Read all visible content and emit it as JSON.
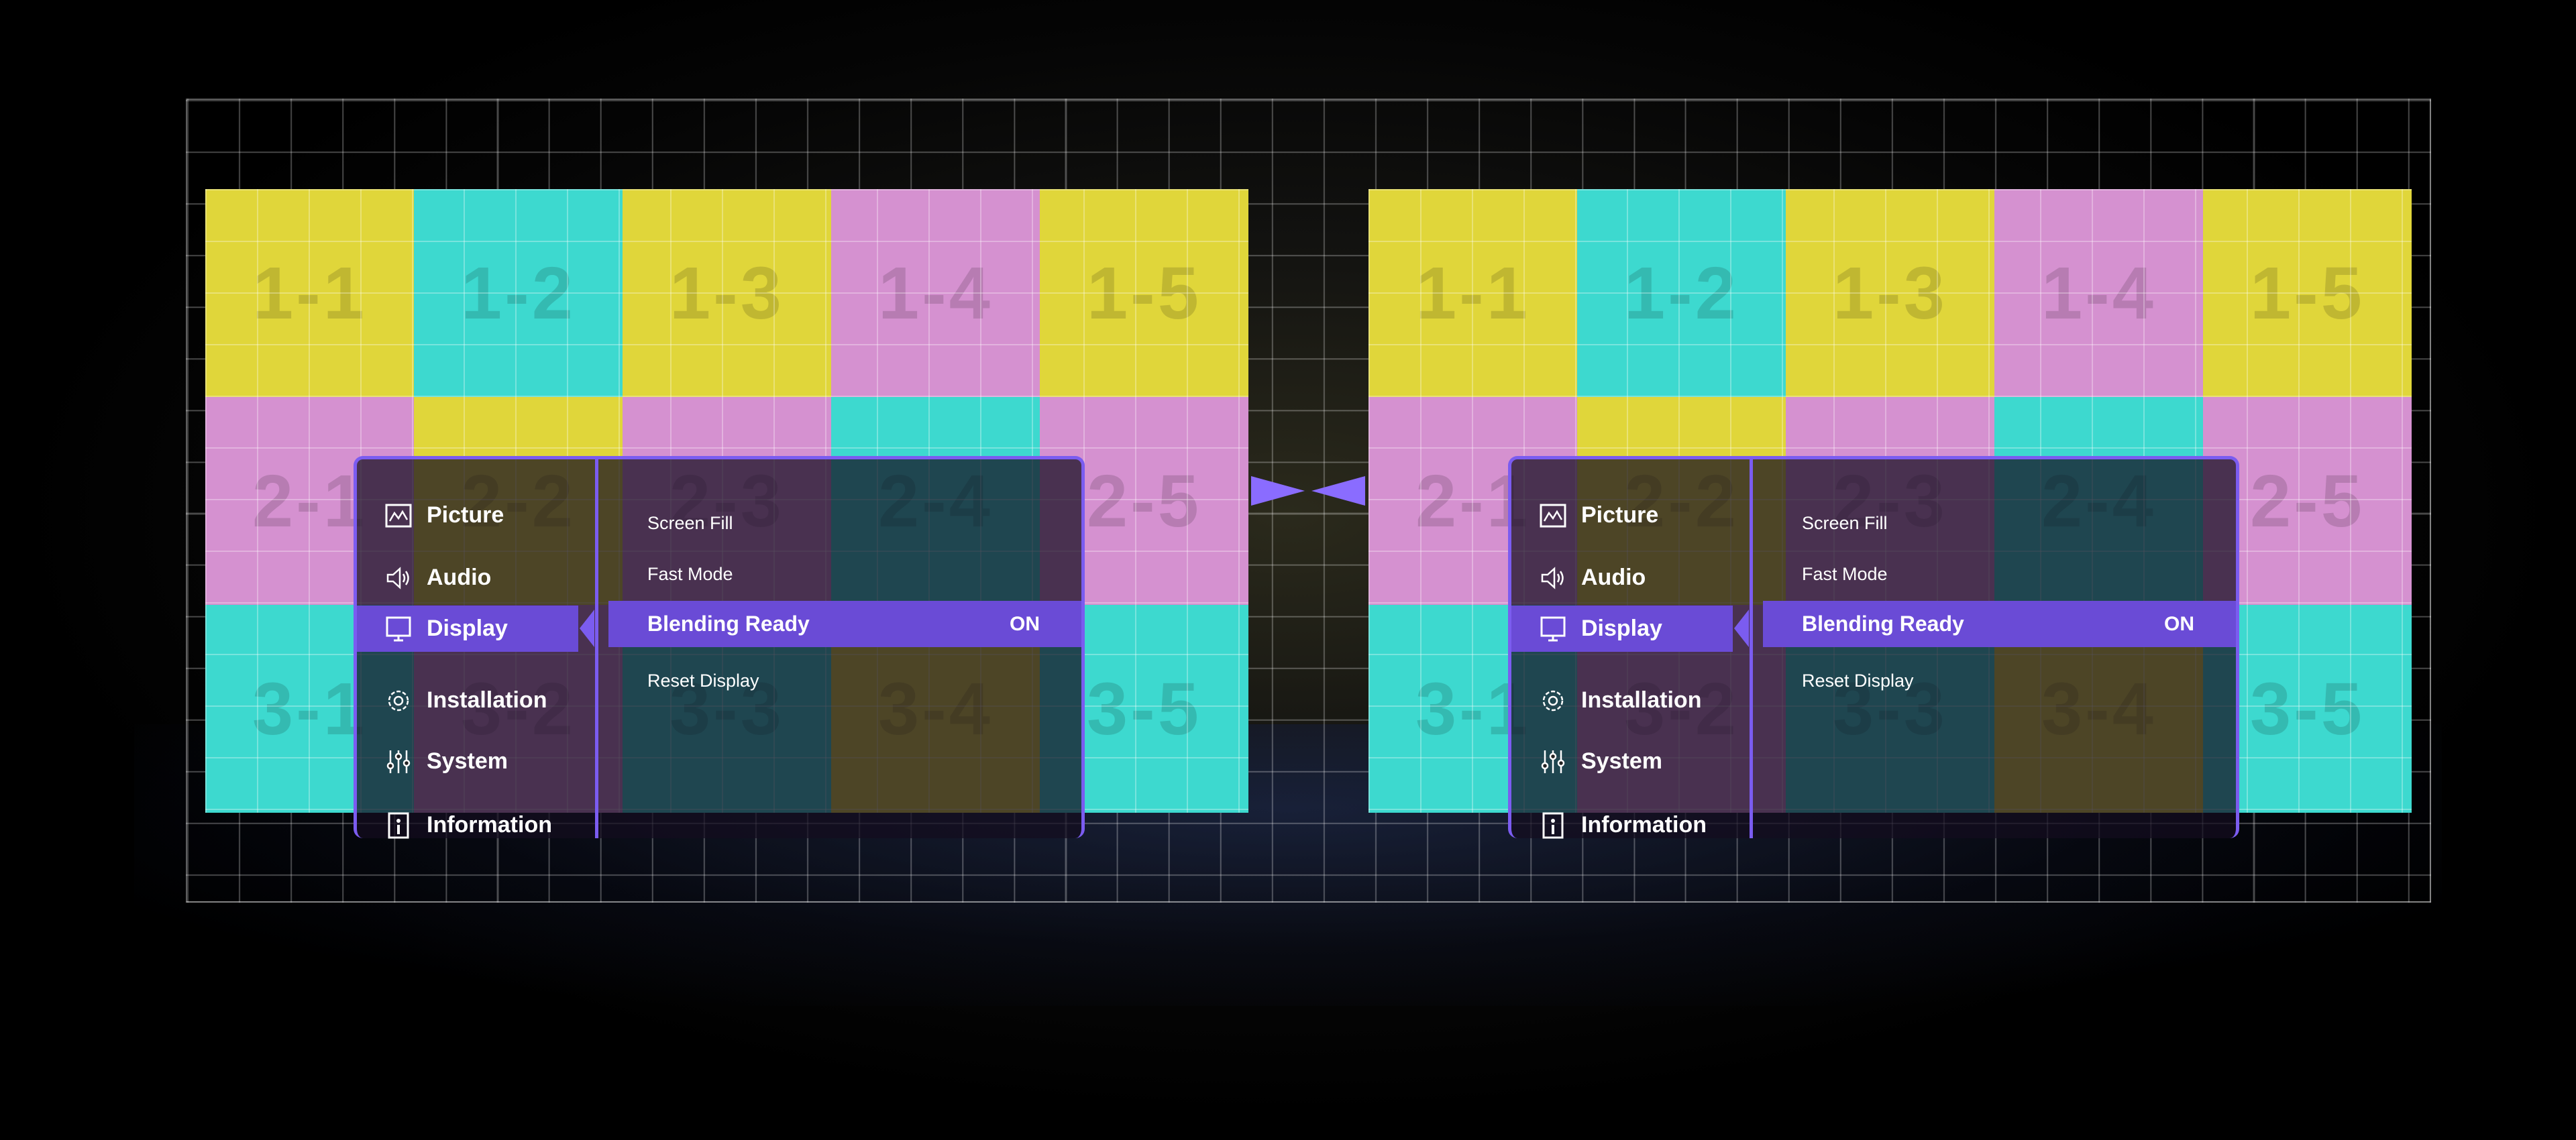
{
  "colors": {
    "yellow": "#e0d63a",
    "cyan": "#3dd9cf",
    "pink": "#d591d0",
    "accent": "#7b5cf0",
    "highlight": "#6a4bd6"
  },
  "screens": [
    {
      "tiles": [
        {
          "label": "1-1",
          "color": "yellow"
        },
        {
          "label": "1-2",
          "color": "cyan"
        },
        {
          "label": "1-3",
          "color": "yellow"
        },
        {
          "label": "1-4",
          "color": "pink"
        },
        {
          "label": "1-5",
          "color": "yellow"
        },
        {
          "label": "2-1",
          "color": "pink"
        },
        {
          "label": "2-2",
          "color": "yellow"
        },
        {
          "label": "2-3",
          "color": "pink"
        },
        {
          "label": "2-4",
          "color": "cyan"
        },
        {
          "label": "2-5",
          "color": "pink"
        },
        {
          "label": "3-1",
          "color": "cyan"
        },
        {
          "label": "3-2",
          "color": "pink"
        },
        {
          "label": "3-3",
          "color": "cyan"
        },
        {
          "label": "3-4",
          "color": "yellow"
        },
        {
          "label": "3-5",
          "color": "cyan"
        }
      ]
    },
    {
      "tiles": [
        {
          "label": "1-1",
          "color": "yellow"
        },
        {
          "label": "1-2",
          "color": "cyan"
        },
        {
          "label": "1-3",
          "color": "yellow"
        },
        {
          "label": "1-4",
          "color": "pink"
        },
        {
          "label": "1-5",
          "color": "yellow"
        },
        {
          "label": "2-1",
          "color": "pink"
        },
        {
          "label": "2-2",
          "color": "yellow"
        },
        {
          "label": "2-3",
          "color": "pink"
        },
        {
          "label": "2-4",
          "color": "cyan"
        },
        {
          "label": "2-5",
          "color": "pink"
        },
        {
          "label": "3-1",
          "color": "cyan"
        },
        {
          "label": "3-2",
          "color": "pink"
        },
        {
          "label": "3-3",
          "color": "cyan"
        },
        {
          "label": "3-4",
          "color": "yellow"
        },
        {
          "label": "3-5",
          "color": "cyan"
        }
      ]
    }
  ],
  "menus": [
    {
      "categories": [
        {
          "label": "Picture",
          "icon": "picture-icon"
        },
        {
          "label": "Audio",
          "icon": "speaker-icon"
        },
        {
          "label": "Display",
          "icon": "monitor-icon",
          "active": true
        },
        {
          "label": "Installation",
          "icon": "gear-icon"
        },
        {
          "label": "System",
          "icon": "sliders-icon"
        },
        {
          "label": "Information",
          "icon": "info-icon"
        }
      ],
      "options": [
        {
          "label": "Screen Fill"
        },
        {
          "label": "Fast Mode"
        },
        {
          "label": "Blending Ready",
          "value": "ON",
          "active": true
        },
        {
          "label": "Reset Display"
        }
      ]
    },
    {
      "categories": [
        {
          "label": "Picture",
          "icon": "picture-icon"
        },
        {
          "label": "Audio",
          "icon": "speaker-icon"
        },
        {
          "label": "Display",
          "icon": "monitor-icon",
          "active": true
        },
        {
          "label": "Installation",
          "icon": "gear-icon"
        },
        {
          "label": "System",
          "icon": "sliders-icon"
        },
        {
          "label": "Information",
          "icon": "info-icon"
        }
      ],
      "options": [
        {
          "label": "Screen Fill"
        },
        {
          "label": "Fast Mode"
        },
        {
          "label": "Blending Ready",
          "value": "ON",
          "active": true
        },
        {
          "label": "Reset Display"
        }
      ]
    }
  ]
}
